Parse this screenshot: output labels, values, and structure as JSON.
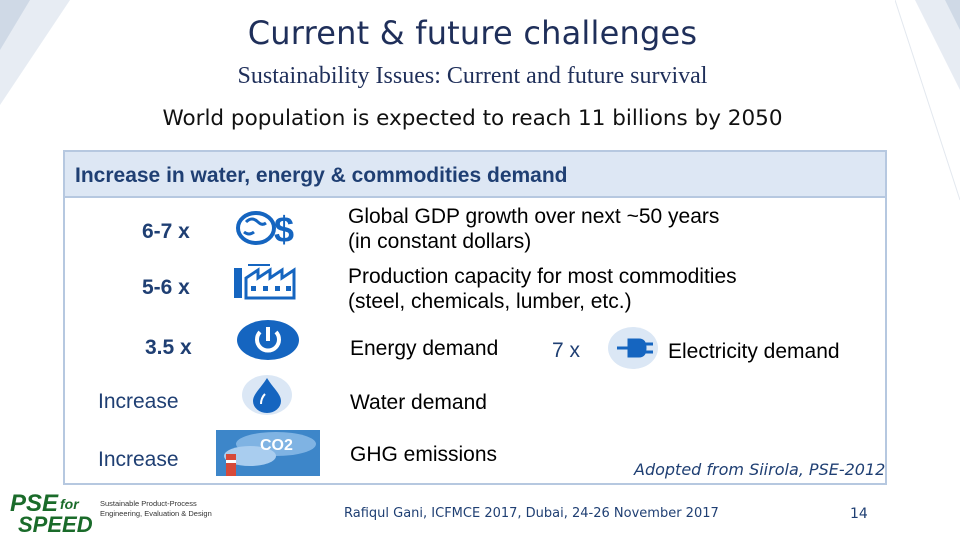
{
  "slide": {
    "title": "Current & future challenges",
    "subtitle": "Sustainability Issues: Current and future survival",
    "headline": "World population is expected to reach 11 billions by 2050"
  },
  "panel": {
    "heading": "Increase in water, energy & commodities demand",
    "rows": [
      {
        "factor": "6-7 x",
        "icon": "dollar-globe-icon",
        "label_line1": "Global GDP growth over next ~50 years",
        "label_line2": "(in constant dollars)"
      },
      {
        "factor": "5-6 x",
        "icon": "factory-icon",
        "label_line1": "Production capacity for most commodities",
        "label_line2": "(steel, chemicals, lumber, etc.)"
      },
      {
        "factor": "3.5 x",
        "icon": "power-button-icon",
        "label": "Energy demand",
        "extra_factor": "7 x",
        "extra_icon": "plug-icon",
        "extra_label": "Electricity demand"
      },
      {
        "factor": "Increase",
        "icon": "water-drop-icon",
        "label": "Water demand"
      },
      {
        "factor": "Increase",
        "icon": "co2-emissions-icon",
        "label": "GHG emissions",
        "icon_text": "CO2"
      }
    ]
  },
  "credit": "Adopted from Siirola, PSE-2012",
  "footer": {
    "text": "Rafiqul Gani, ICFMCE 2017, Dubai, 24-26 November 2017",
    "page_number": "14"
  },
  "logo": {
    "line1": "PSE",
    "line1b": "for",
    "line2": "SPEED",
    "tagline_line1": "Sustainable Product-Process",
    "tagline_line2": "Engineering, Evaluation & Design"
  },
  "colors": {
    "title": "#1f2f5a",
    "accent_blue": "#1f3f73",
    "panel_header_bg": "#dde7f4",
    "panel_border": "#b6c8e0",
    "icon_blue": "#1565c0",
    "logo_green": "#1a6b2a"
  }
}
